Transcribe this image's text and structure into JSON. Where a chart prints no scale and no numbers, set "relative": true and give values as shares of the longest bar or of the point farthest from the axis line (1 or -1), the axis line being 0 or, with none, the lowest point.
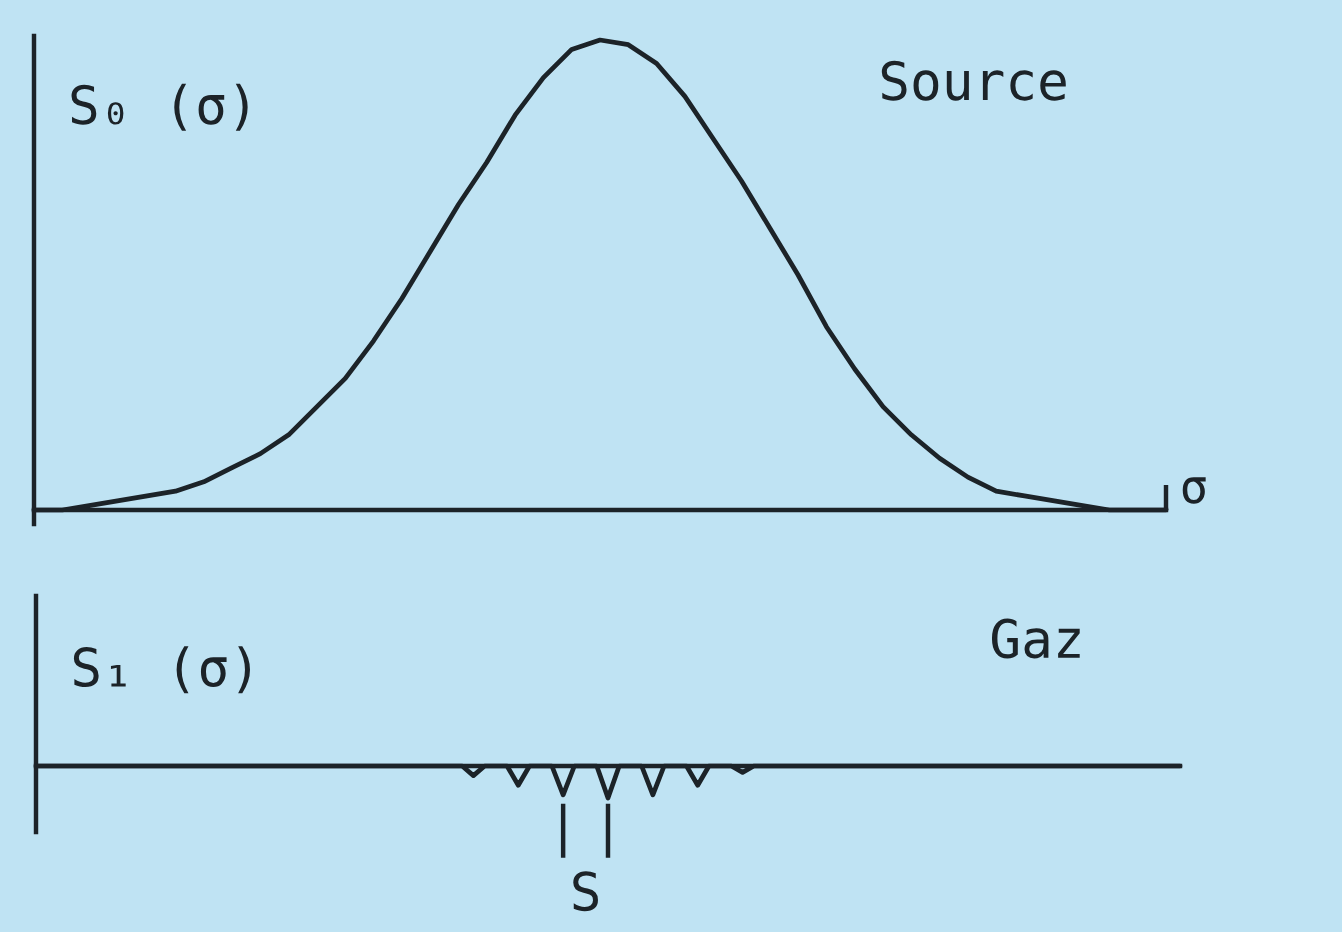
{
  "chart_data": [
    {
      "type": "line",
      "relative": true,
      "title": "Source",
      "ylabel": "S₀ (σ)",
      "xlabel": "σ",
      "color": "#1c2328",
      "categories": [
        null,
        null,
        null,
        null,
        null,
        null,
        null,
        null,
        null,
        null,
        null,
        null,
        null,
        null,
        null,
        null,
        null,
        null,
        null,
        null,
        null,
        null,
        null,
        null,
        null,
        null,
        null,
        null,
        null,
        null,
        null,
        null,
        null,
        null,
        null,
        null,
        null,
        null,
        null,
        null,
        null
      ],
      "values": [
        0,
        0,
        0.01,
        0.02,
        0.03,
        0.04,
        0.06,
        0.09,
        0.12,
        0.16,
        0.22,
        0.28,
        0.36,
        0.45,
        0.55,
        0.65,
        0.74,
        0.84,
        0.92,
        0.98,
        1,
        0.99,
        0.95,
        0.88,
        0.79,
        0.7,
        0.6,
        0.5,
        0.39,
        0.3,
        0.22,
        0.16,
        0.11,
        0.07,
        0.04,
        0.03,
        0.02,
        0.01,
        0,
        0,
        0
      ]
    },
    {
      "type": "line",
      "relative": true,
      "title": "Gaz",
      "ylabel": "S₁ (σ)",
      "color": "#1c2328",
      "annotations": [
        "S"
      ],
      "categories": [
        null,
        null,
        null,
        null,
        null,
        null,
        null,
        null,
        null,
        null,
        null,
        null,
        null,
        null,
        null,
        null,
        null,
        null,
        null,
        null,
        null,
        null,
        null,
        null,
        null,
        null,
        null,
        null,
        null,
        null,
        null,
        null,
        null,
        null,
        null,
        null,
        null,
        null,
        null,
        null,
        null,
        null,
        null,
        null,
        null,
        null,
        null,
        null,
        null,
        null,
        null,
        null,
        null,
        null,
        null,
        null,
        null,
        null,
        null,
        null,
        null,
        null,
        null,
        null,
        null,
        null,
        null,
        null,
        null,
        null,
        null,
        null,
        null,
        null,
        null,
        null,
        null,
        null,
        null,
        null,
        null,
        null,
        null,
        null,
        null,
        null,
        null,
        null,
        null,
        null,
        null,
        null,
        null,
        null,
        null,
        null,
        null,
        null,
        null,
        null,
        null,
        null,
        null
      ],
      "values": [
        0,
        0,
        0,
        0,
        0,
        0,
        0,
        0,
        0,
        0,
        0,
        0,
        0,
        0,
        0,
        0,
        0,
        0,
        0,
        0,
        0,
        0,
        0,
        0,
        0,
        0,
        0,
        0,
        0,
        0,
        0,
        0,
        0,
        0,
        0,
        0,
        0,
        0,
        0,
        -0.3,
        0,
        0,
        0,
        -0.6,
        0,
        0,
        0,
        -0.9,
        0,
        0,
        0,
        -1,
        0,
        0,
        0,
        -0.9,
        0,
        0,
        0,
        -0.6,
        0,
        0,
        0,
        -0.2,
        0,
        0,
        0,
        0,
        0,
        0,
        0,
        0,
        0,
        0,
        0,
        0,
        0,
        0,
        0,
        0,
        0,
        0,
        0,
        0,
        0,
        0,
        0,
        0,
        0,
        0,
        0,
        0,
        0,
        0,
        0,
        0,
        0,
        0,
        0,
        0,
        0,
        0,
        0
      ]
    }
  ]
}
